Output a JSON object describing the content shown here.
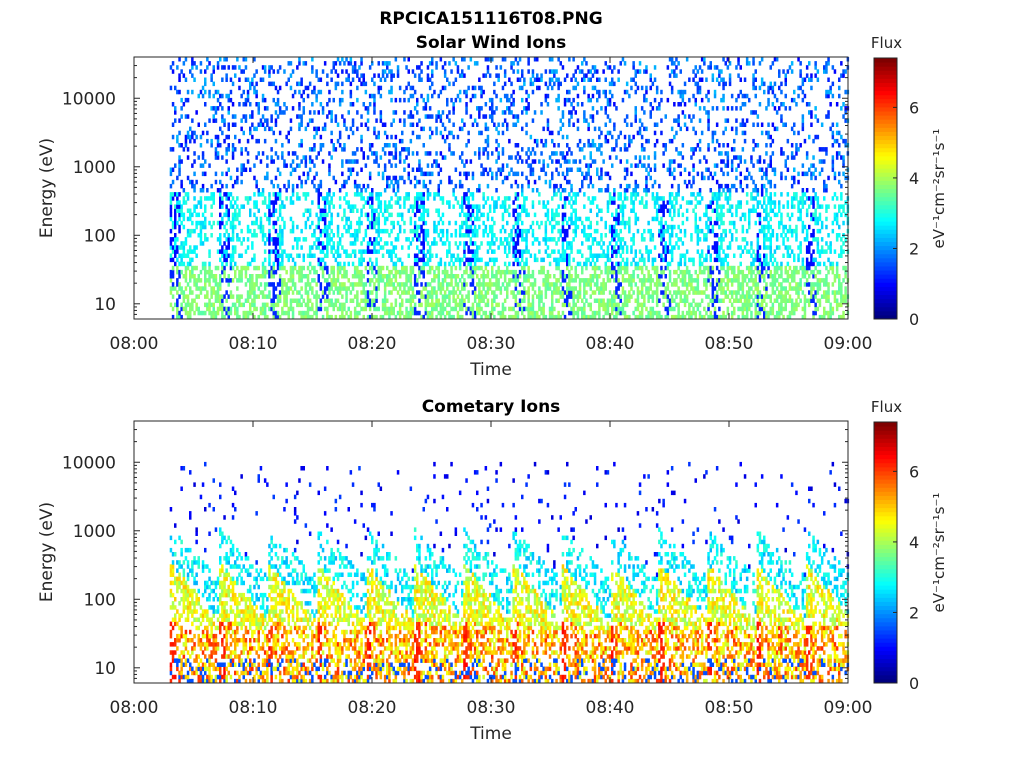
{
  "figure_title": "RPCICA151116T08.PNG",
  "colors": {
    "colormap": [
      "#00007f",
      "#0000ff",
      "#007fff",
      "#00ffff",
      "#7fff7f",
      "#ffff00",
      "#ff7f00",
      "#ff0000",
      "#7f0000"
    ],
    "axis": "#262626"
  },
  "chart_data": [
    {
      "type": "heatmap",
      "title": "Solar Wind Ions",
      "xlabel": "Time",
      "ylabel": "Energy (eV)",
      "x_ticks": [
        "08:00",
        "08:10",
        "08:20",
        "08:30",
        "08:40",
        "08:50",
        "09:00"
      ],
      "xlim": [
        "08:00",
        "09:00"
      ],
      "y_ticks": [
        "10",
        "100",
        "1000",
        "10000"
      ],
      "y_scale": "log",
      "ylim": [
        6,
        40000
      ],
      "colorbar": {
        "title": "Flux",
        "label": "eV⁻¹cm⁻²sr⁻¹s⁻¹",
        "ticks": [
          "0",
          "2",
          "4",
          "6"
        ],
        "range": [
          0,
          7.4
        ]
      },
      "data_start": "08:03",
      "sweep_period_min": 4.1,
      "description_profile": "low energy (10-40 eV) flux ~3.5; 100-500 eV flux ~2.5-3; 1000-30000 eV scattered flux ~1-2"
    },
    {
      "type": "heatmap",
      "title": "Cometary Ions",
      "xlabel": "Time",
      "ylabel": "Energy (eV)",
      "x_ticks": [
        "08:00",
        "08:10",
        "08:20",
        "08:30",
        "08:40",
        "08:50",
        "09:00"
      ],
      "xlim": [
        "08:00",
        "09:00"
      ],
      "y_ticks": [
        "10",
        "100",
        "1000",
        "10000"
      ],
      "y_scale": "log",
      "ylim": [
        6,
        40000
      ],
      "colorbar": {
        "title": "Flux",
        "label": "eV⁻¹cm⁻²sr⁻¹s⁻¹",
        "ticks": [
          "0",
          "2",
          "4",
          "6"
        ],
        "range": [
          0,
          7.4
        ]
      },
      "data_start": "08:03",
      "sweep_period_min": 4.1,
      "description_profile": "peak flux ~6 near 15-40 eV; 40-300 eV flux ~4-5; 300-1000 eV flux ~2-3; sparse points ~1 up to 10000 eV"
    }
  ]
}
